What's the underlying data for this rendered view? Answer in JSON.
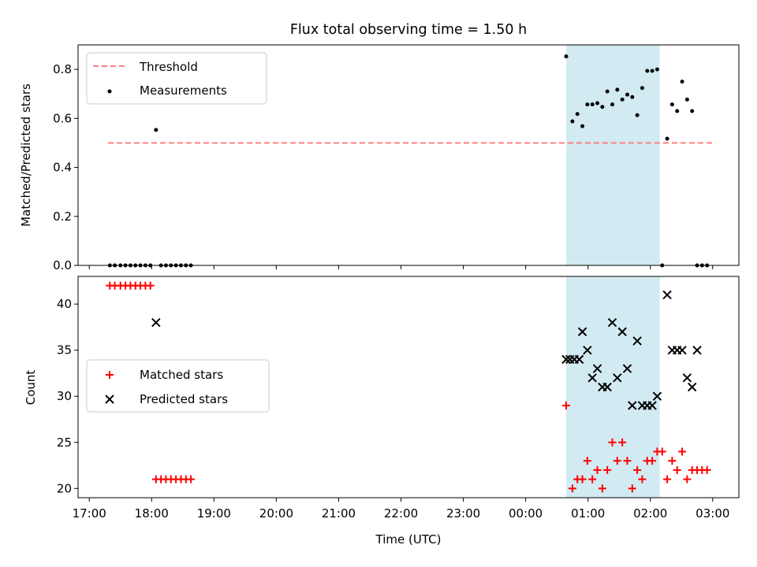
{
  "colors": {
    "threshold": "#ff7f7f",
    "measurements": "#000000",
    "matched": "#ff0000",
    "predicted": "#000000",
    "span": "#add8e6"
  },
  "shared_x": {
    "label": "Time (UTC)",
    "unit": "hours (decimal; values above 24 are after midnight)",
    "xlim": [
      16.82,
      27.42
    ],
    "ticks": [
      17,
      18,
      19,
      20,
      21,
      22,
      23,
      24,
      25,
      26,
      27
    ],
    "tick_labels": [
      "17:00",
      "18:00",
      "19:00",
      "20:00",
      "21:00",
      "22:00",
      "23:00",
      "00:00",
      "01:00",
      "02:00",
      "03:00"
    ]
  },
  "chart_data": [
    {
      "type": "scatter",
      "title": "Flux total observing time = 1.50 h",
      "ylabel": "Matched/Predicted stars",
      "xlabel": "",
      "ylim": [
        0,
        0.9
      ],
      "yticks": [
        0.0,
        0.2,
        0.4,
        0.6,
        0.8
      ],
      "ytick_labels": [
        "0.0",
        "0.2",
        "0.4",
        "0.6",
        "0.8"
      ],
      "grid": false,
      "legend": "upper left",
      "legend_entries": [
        "Threshold",
        "Measurements"
      ],
      "shaded_span": [
        24.65,
        26.15
      ],
      "threshold": {
        "name": "Threshold",
        "style": "dashed",
        "y": 0.5,
        "x": [
          17.3,
          27.0
        ]
      },
      "series": [
        {
          "name": "Measurements",
          "marker": "dot",
          "points": [
            [
              17.33,
              0
            ],
            [
              17.41,
              0
            ],
            [
              17.5,
              0
            ],
            [
              17.58,
              0
            ],
            [
              17.66,
              0
            ],
            [
              17.74,
              0
            ],
            [
              17.82,
              0
            ],
            [
              17.9,
              0
            ],
            [
              17.98,
              0
            ],
            [
              18.07,
              0.553
            ],
            [
              18.15,
              0
            ],
            [
              18.23,
              0
            ],
            [
              18.31,
              0
            ],
            [
              18.39,
              0
            ],
            [
              18.47,
              0
            ],
            [
              18.55,
              0
            ],
            [
              18.63,
              0
            ],
            [
              24.65,
              0.853
            ],
            [
              24.75,
              0.588
            ],
            [
              24.83,
              0.618
            ],
            [
              24.91,
              0.568
            ],
            [
              24.99,
              0.657
            ],
            [
              25.07,
              0.657
            ],
            [
              25.15,
              0.662
            ],
            [
              25.23,
              0.647
            ],
            [
              25.31,
              0.71
            ],
            [
              25.39,
              0.657
            ],
            [
              25.47,
              0.717
            ],
            [
              25.55,
              0.677
            ],
            [
              25.63,
              0.697
            ],
            [
              25.71,
              0.687
            ],
            [
              25.79,
              0.613
            ],
            [
              25.87,
              0.724
            ],
            [
              25.95,
              0.794
            ],
            [
              26.03,
              0.794
            ],
            [
              26.11,
              0.8
            ],
            [
              26.19,
              0
            ],
            [
              26.27,
              0.517
            ],
            [
              26.35,
              0.657
            ],
            [
              26.43,
              0.63
            ],
            [
              26.51,
              0.75
            ],
            [
              26.59,
              0.677
            ],
            [
              26.67,
              0.63
            ],
            [
              26.75,
              0
            ],
            [
              26.83,
              0
            ],
            [
              26.91,
              0
            ]
          ]
        }
      ]
    },
    {
      "type": "scatter",
      "title": "",
      "ylabel": "Count",
      "xlabel": "Time (UTC)",
      "ylim": [
        19,
        43
      ],
      "yticks": [
        20,
        25,
        30,
        35,
        40
      ],
      "ytick_labels": [
        "20",
        "25",
        "30",
        "35",
        "40"
      ],
      "grid": false,
      "legend": "center left",
      "legend_entries": [
        "Matched stars",
        "Predicted stars"
      ],
      "shaded_span": [
        24.65,
        26.15
      ],
      "series": [
        {
          "name": "Matched stars",
          "marker": "plus",
          "points": [
            [
              17.33,
              42
            ],
            [
              17.41,
              42
            ],
            [
              17.5,
              42
            ],
            [
              17.58,
              42
            ],
            [
              17.66,
              42
            ],
            [
              17.74,
              42
            ],
            [
              17.82,
              42
            ],
            [
              17.9,
              42
            ],
            [
              17.98,
              42
            ],
            [
              18.07,
              21
            ],
            [
              18.15,
              21
            ],
            [
              18.23,
              21
            ],
            [
              18.31,
              21
            ],
            [
              18.39,
              21
            ],
            [
              18.47,
              21
            ],
            [
              18.55,
              21
            ],
            [
              18.63,
              21
            ],
            [
              24.65,
              29
            ],
            [
              24.75,
              20
            ],
            [
              24.83,
              21
            ],
            [
              24.91,
              21
            ],
            [
              24.99,
              23
            ],
            [
              25.07,
              21
            ],
            [
              25.15,
              22
            ],
            [
              25.23,
              20
            ],
            [
              25.31,
              22
            ],
            [
              25.39,
              25
            ],
            [
              25.47,
              23
            ],
            [
              25.55,
              25
            ],
            [
              25.63,
              23
            ],
            [
              25.71,
              20
            ],
            [
              25.79,
              22
            ],
            [
              25.87,
              21
            ],
            [
              25.95,
              23
            ],
            [
              26.03,
              23
            ],
            [
              26.11,
              24
            ],
            [
              26.19,
              24
            ],
            [
              26.27,
              21
            ],
            [
              26.35,
              23
            ],
            [
              26.43,
              22
            ],
            [
              26.51,
              24
            ],
            [
              26.59,
              21
            ],
            [
              26.67,
              22
            ],
            [
              26.75,
              22
            ],
            [
              26.83,
              22
            ],
            [
              26.91,
              22
            ]
          ]
        },
        {
          "name": "Predicted stars",
          "marker": "x",
          "points": [
            [
              18.07,
              38
            ],
            [
              24.65,
              34
            ],
            [
              24.71,
              34
            ],
            [
              24.78,
              34
            ],
            [
              24.86,
              34
            ],
            [
              24.91,
              37
            ],
            [
              24.99,
              35
            ],
            [
              25.07,
              32
            ],
            [
              25.15,
              33
            ],
            [
              25.23,
              31
            ],
            [
              25.31,
              31
            ],
            [
              25.39,
              38
            ],
            [
              25.47,
              32
            ],
            [
              25.55,
              37
            ],
            [
              25.63,
              33
            ],
            [
              25.71,
              29
            ],
            [
              25.79,
              36
            ],
            [
              25.87,
              29
            ],
            [
              25.95,
              29
            ],
            [
              26.03,
              29
            ],
            [
              26.11,
              30
            ],
            [
              26.27,
              41
            ],
            [
              26.35,
              35
            ],
            [
              26.43,
              35
            ],
            [
              26.51,
              35
            ],
            [
              26.59,
              32
            ],
            [
              26.67,
              31
            ],
            [
              26.75,
              35
            ]
          ]
        }
      ]
    }
  ]
}
